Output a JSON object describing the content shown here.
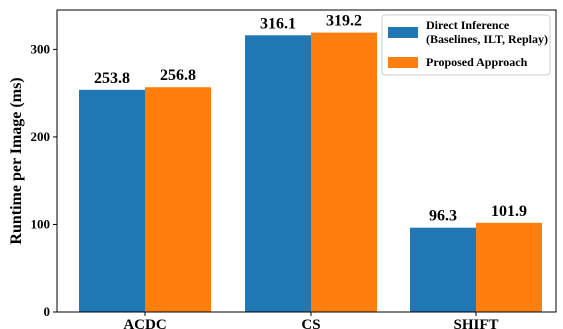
{
  "chart_data": {
    "type": "bar",
    "categories": [
      "ACDC",
      "CS",
      "SHIFT"
    ],
    "series": [
      {
        "name": "Direct Inference\n(Baselines, ILT, Replay)",
        "values": [
          253.8,
          316.1,
          96.3
        ],
        "color": "#1f77b4"
      },
      {
        "name": "Proposed Approach",
        "values": [
          256.8,
          319.2,
          101.9
        ],
        "color": "#ff7f0e"
      }
    ],
    "value_labels": [
      [
        "253.8",
        "316.1",
        "96.3"
      ],
      [
        "256.8",
        "319.2",
        "101.9"
      ]
    ],
    "title": "",
    "xlabel": "",
    "ylabel": "Runtime per Image (ms)",
    "ylim": [
      0,
      345
    ],
    "yticks": [
      0,
      100,
      200,
      300
    ],
    "grid": false,
    "legend_position": "top-right"
  }
}
